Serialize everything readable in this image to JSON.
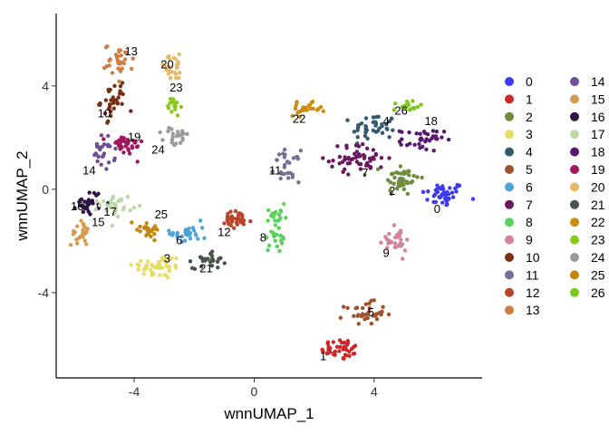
{
  "chart_data": {
    "type": "scatter",
    "xlabel": "wnnUMAP_1",
    "ylabel": "wnnUMAP_2",
    "xlim": [
      -6.6,
      7.6
    ],
    "ylim": [
      -7.3,
      6.8
    ],
    "xticks": [
      -4,
      0,
      4
    ],
    "yticks": [
      -4,
      0,
      4
    ],
    "grid": false,
    "legend_position": "right",
    "series": [
      {
        "name": "0",
        "color": "#3B3BF0",
        "center": [
          6.3,
          -0.2
        ],
        "spread": [
          0.6,
          0.4
        ],
        "n": 42,
        "label_pos": [
          6.1,
          -0.8
        ]
      },
      {
        "name": "1",
        "color": "#CC2828",
        "center": [
          2.9,
          -6.2
        ],
        "spread": [
          0.55,
          0.35
        ],
        "n": 40,
        "label_pos": [
          2.3,
          -6.5
        ]
      },
      {
        "name": "2",
        "color": "#6E8C3E",
        "center": [
          4.9,
          0.4
        ],
        "spread": [
          0.5,
          0.55
        ],
        "n": 45,
        "label_pos": [
          4.6,
          -0.1
        ]
      },
      {
        "name": "3",
        "color": "#E8DC64",
        "center": [
          -3.2,
          -3.0
        ],
        "spread": [
          0.7,
          0.4
        ],
        "n": 50,
        "label_pos": [
          -2.9,
          -2.7
        ]
      },
      {
        "name": "4",
        "color": "#355970",
        "center": [
          4.0,
          2.4
        ],
        "spread": [
          0.6,
          0.45
        ],
        "n": 42,
        "label_pos": [
          4.4,
          2.6
        ]
      },
      {
        "name": "5",
        "color": "#A0522D",
        "center": [
          3.7,
          -4.8
        ],
        "spread": [
          0.55,
          0.35
        ],
        "n": 36,
        "label_pos": [
          3.9,
          -4.8
        ]
      },
      {
        "name": "6",
        "color": "#4FA3D8",
        "center": [
          -2.2,
          -1.7
        ],
        "spread": [
          0.5,
          0.35
        ],
        "n": 30,
        "label_pos": [
          -2.5,
          -2.0
        ]
      },
      {
        "name": "7",
        "color": "#6A1960",
        "center": [
          3.5,
          1.2
        ],
        "spread": [
          0.8,
          0.45
        ],
        "n": 55,
        "label_pos": [
          3.7,
          0.6
        ]
      },
      {
        "name": "8",
        "color": "#58D25A",
        "center": [
          0.7,
          -1.5
        ],
        "spread": [
          0.25,
          0.8
        ],
        "n": 36,
        "label_pos": [
          0.3,
          -1.9
        ]
      },
      {
        "name": "9",
        "color": "#D4849A",
        "center": [
          4.7,
          -2.0
        ],
        "spread": [
          0.45,
          0.4
        ],
        "n": 30,
        "label_pos": [
          4.4,
          -2.5
        ]
      },
      {
        "name": "10",
        "color": "#7A2E12",
        "center": [
          -4.7,
          3.4
        ],
        "spread": [
          0.35,
          0.55
        ],
        "n": 34,
        "label_pos": [
          -5.0,
          2.9
        ]
      },
      {
        "name": "11",
        "color": "#757095",
        "center": [
          1.1,
          0.9
        ],
        "spread": [
          0.35,
          0.5
        ],
        "n": 28,
        "label_pos": [
          0.7,
          0.7
        ]
      },
      {
        "name": "12",
        "color": "#B8442A",
        "center": [
          -0.6,
          -1.2
        ],
        "spread": [
          0.45,
          0.3
        ],
        "n": 34,
        "label_pos": [
          -1.0,
          -1.7
        ]
      },
      {
        "name": "13",
        "color": "#CC8045",
        "center": [
          -4.5,
          5.0
        ],
        "spread": [
          0.4,
          0.5
        ],
        "n": 34,
        "label_pos": [
          -4.1,
          5.3
        ]
      },
      {
        "name": "14",
        "color": "#6E4F96",
        "center": [
          -5.0,
          1.4
        ],
        "spread": [
          0.3,
          0.55
        ],
        "n": 26,
        "label_pos": [
          -5.5,
          0.7
        ]
      },
      {
        "name": "15",
        "color": "#D89A50",
        "center": [
          -5.8,
          -1.7
        ],
        "spread": [
          0.25,
          0.4
        ],
        "n": 24,
        "label_pos": [
          -5.2,
          -1.3
        ]
      },
      {
        "name": "16",
        "color": "#2E1545",
        "center": [
          -5.5,
          -0.5
        ],
        "spread": [
          0.35,
          0.4
        ],
        "n": 30,
        "label_pos": [
          -5.9,
          -0.7
        ]
      },
      {
        "name": "17",
        "color": "#BDD8A8",
        "center": [
          -4.6,
          -0.6
        ],
        "spread": [
          0.45,
          0.35
        ],
        "n": 30,
        "label_pos": [
          -4.8,
          -0.9
        ]
      },
      {
        "name": "18",
        "color": "#551A70",
        "center": [
          5.6,
          1.9
        ],
        "spread": [
          0.6,
          0.35
        ],
        "n": 36,
        "label_pos": [
          5.9,
          2.6
        ]
      },
      {
        "name": "19",
        "color": "#A0185E",
        "center": [
          -4.3,
          1.7
        ],
        "spread": [
          0.5,
          0.35
        ],
        "n": 34,
        "label_pos": [
          -4.0,
          2.0
        ]
      },
      {
        "name": "20",
        "color": "#E6B86A",
        "center": [
          -2.7,
          4.7
        ],
        "spread": [
          0.45,
          0.4
        ],
        "n": 24,
        "label_pos": [
          -2.9,
          4.8
        ]
      },
      {
        "name": "21",
        "color": "#475446",
        "center": [
          -1.5,
          -2.7
        ],
        "spread": [
          0.45,
          0.3
        ],
        "n": 26,
        "label_pos": [
          -1.6,
          -3.1
        ]
      },
      {
        "name": "22",
        "color": "#C98F10",
        "center": [
          1.7,
          3.1
        ],
        "spread": [
          0.45,
          0.2
        ],
        "n": 26,
        "label_pos": [
          1.5,
          2.7
        ]
      },
      {
        "name": "23",
        "color": "#8AC81E",
        "center": [
          -2.7,
          3.2
        ],
        "spread": [
          0.2,
          0.35
        ],
        "n": 18,
        "label_pos": [
          -2.6,
          3.9
        ]
      },
      {
        "name": "24",
        "color": "#9A9A9A",
        "center": [
          -2.6,
          2.0
        ],
        "spread": [
          0.35,
          0.35
        ],
        "n": 22,
        "label_pos": [
          -3.2,
          1.5
        ]
      },
      {
        "name": "25",
        "color": "#C4860F",
        "center": [
          -3.6,
          -1.5
        ],
        "spread": [
          0.5,
          0.3
        ],
        "n": 24,
        "label_pos": [
          -3.1,
          -1.0
        ]
      },
      {
        "name": "26",
        "color": "#7CC81C",
        "center": [
          5.1,
          3.2
        ],
        "spread": [
          0.35,
          0.2
        ],
        "n": 18,
        "label_pos": [
          4.9,
          3.0
        ]
      }
    ]
  }
}
